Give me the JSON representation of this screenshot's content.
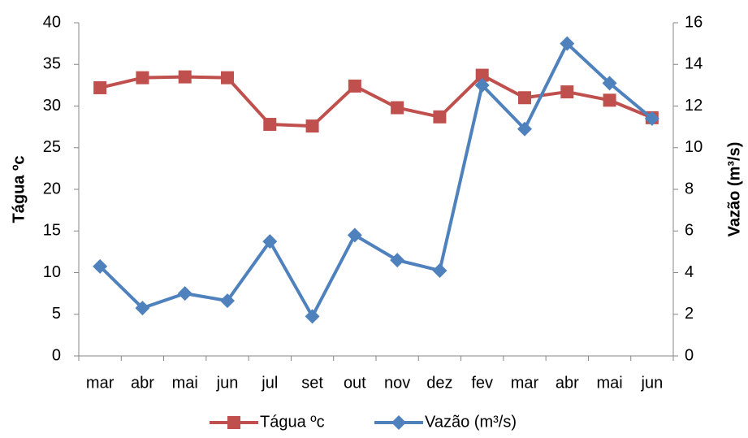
{
  "chart_data": {
    "type": "line",
    "categories": [
      "mar",
      "abr",
      "mai",
      "jun",
      "jul",
      "set",
      "out",
      "nov",
      "dez",
      "fev",
      "mar",
      "abr",
      "mai",
      "jun"
    ],
    "y_label": "Tágua  ºc",
    "y2_label": "Vazão (m³/s)",
    "ylim": [
      0,
      40
    ],
    "yticks": [
      0,
      5,
      10,
      15,
      20,
      25,
      30,
      35,
      40
    ],
    "y2lim": [
      0,
      16
    ],
    "y2ticks": [
      0,
      2,
      4,
      6,
      8,
      10,
      12,
      14,
      16
    ],
    "grid": false,
    "legend": "bottom",
    "series": [
      {
        "name": "Tágua  ºc",
        "color": "#c0504d",
        "marker": "square",
        "values": [
          32.2,
          33.4,
          33.5,
          33.4,
          27.8,
          27.6,
          32.4,
          29.8,
          28.7,
          33.7,
          31.0,
          31.7,
          30.7,
          28.6
        ]
      },
      {
        "name": "Vazão (m³/s)",
        "color": "#4f81bd",
        "marker": "diamond",
        "axis": "y2",
        "values": [
          4.3,
          2.3,
          3.0,
          2.65,
          5.5,
          1.9,
          5.8,
          4.6,
          4.1,
          13.0,
          10.9,
          15.0,
          13.1,
          11.4
        ]
      }
    ]
  }
}
